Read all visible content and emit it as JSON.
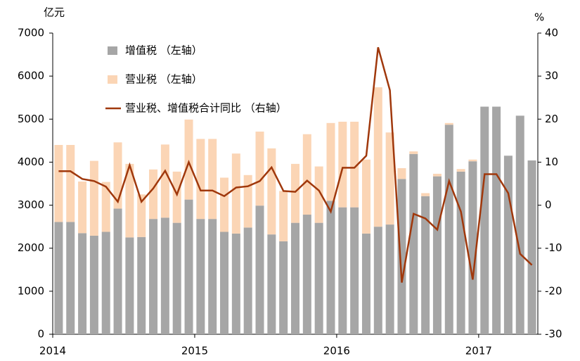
{
  "chart_data": {
    "type": "bar-line",
    "left_unit": "亿元",
    "right_unit": "%",
    "categories": [
      "2014",
      null,
      null,
      null,
      null,
      null,
      null,
      null,
      null,
      null,
      null,
      null,
      "2015",
      null,
      null,
      null,
      null,
      null,
      null,
      null,
      null,
      null,
      null,
      null,
      "2016",
      null,
      null,
      null,
      null,
      null,
      null,
      null,
      null,
      null,
      null,
      null,
      "2017",
      null,
      null,
      null,
      null
    ],
    "series": [
      {
        "name": "增值税 （左轴）",
        "color": "#a6a6a6",
        "values": [
          2610,
          2610,
          2350,
          2290,
          2380,
          2920,
          2250,
          2260,
          2680,
          2710,
          2590,
          3130,
          2680,
          2680,
          2380,
          2340,
          2480,
          2990,
          2320,
          2160,
          2590,
          2780,
          2590,
          3100,
          2950,
          2950,
          2340,
          2500,
          2550,
          3610,
          4190,
          3210,
          3670,
          4870,
          3780,
          4020,
          5290,
          5290,
          4150,
          5080,
          4040
        ]
      },
      {
        "name": "营业税 （左轴）",
        "color": "#fbd5b5",
        "values": [
          1790,
          1790,
          1200,
          1740,
          1160,
          1540,
          1710,
          990,
          1150,
          1700,
          1190,
          1860,
          1860,
          1860,
          1260,
          1860,
          1220,
          1720,
          2000,
          1170,
          1370,
          1870,
          1310,
          1810,
          1990,
          1990,
          1720,
          3240,
          2140,
          250,
          60,
          70,
          60,
          40,
          60,
          40,
          null,
          null,
          null,
          null,
          null
        ]
      },
      {
        "name": "营业税、增值税合计同比 （右轴）",
        "color": "#a0380c",
        "axis": "y2",
        "values": [
          7.9,
          7.9,
          6.1,
          5.6,
          4.3,
          0.8,
          9.3,
          0.8,
          3.9,
          8.0,
          2.5,
          10.0,
          3.4,
          3.4,
          2.1,
          4.1,
          4.4,
          5.6,
          8.8,
          3.3,
          3.1,
          5.7,
          3.4,
          -1.5,
          8.7,
          8.7,
          11.5,
          36.7,
          26.7,
          -18,
          -2,
          -3.1,
          -5.7,
          5.6,
          -1.5,
          -17.3,
          7.2,
          7.2,
          2.8,
          -11.3,
          -13.9
        ]
      }
    ],
    "ylim": [
      0,
      7000
    ],
    "yticks": [
      0,
      1000,
      2000,
      3000,
      4000,
      5000,
      6000,
      7000
    ],
    "y2lim": [
      -30,
      40
    ],
    "y2ticks": [
      -30,
      -20,
      -10,
      0,
      10,
      20,
      30,
      40
    ]
  }
}
